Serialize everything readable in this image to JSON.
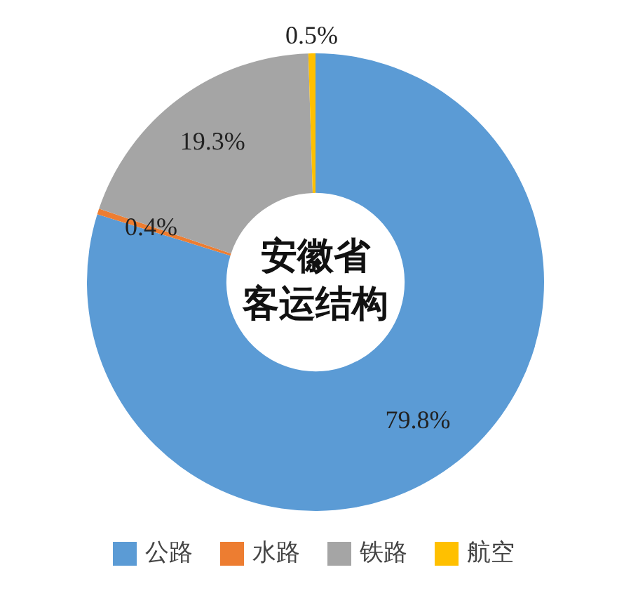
{
  "chart_data": {
    "type": "donut",
    "title": "安徽省客运结构",
    "categories": [
      "公路",
      "水路",
      "铁路",
      "航空"
    ],
    "values": [
      79.8,
      0.4,
      19.3,
      0.5
    ],
    "colors": [
      "#5b9bd5",
      "#ed7d31",
      "#a5a5a5",
      "#ffc000"
    ],
    "value_labels": [
      "79.8%",
      "0.4%",
      "19.3%",
      "0.5%"
    ],
    "legend": "bottom"
  }
}
